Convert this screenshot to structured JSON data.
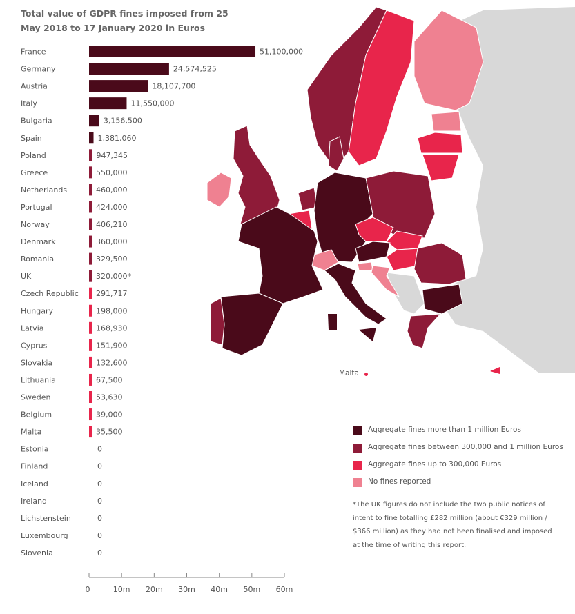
{
  "title": "Total value of GDPR fines imposed from 25 May 2018 to 17 January 2020 in Euros",
  "colors": {
    "over_1m": "#4a0a1a",
    "between_300k_1m": "#8e1b38",
    "up_to_300k": "#e8254b",
    "no_fines": "#ef8191",
    "other": "#d8d8d8",
    "axis": "#888888"
  },
  "chart_data": {
    "type": "bar",
    "orientation": "horizontal",
    "categories": [
      "France",
      "Germany",
      "Austria",
      "Italy",
      "Bulgaria",
      "Spain",
      "Poland",
      "Greece",
      "Netherlands",
      "Portugal",
      "Norway",
      "Denmark",
      "Romania",
      "UK",
      "Czech Republic",
      "Hungary",
      "Latvia",
      "Cyprus",
      "Slovakia",
      "Lithuania",
      "Sweden",
      "Belgium",
      "Malta",
      "Estonia",
      "Finland",
      "Iceland",
      "Ireland",
      "Lichstenstein",
      "Luxembourg",
      "Slovenia"
    ],
    "values": [
      51100000,
      24574525,
      18107700,
      11550000,
      3156500,
      1381060,
      947345,
      550000,
      460000,
      424000,
      406210,
      360000,
      329500,
      320000,
      291717,
      198000,
      168930,
      151900,
      132600,
      67500,
      53630,
      39000,
      35500,
      0,
      0,
      0,
      0,
      0,
      0,
      0
    ],
    "value_labels": [
      "51,100,000",
      "24,574,525",
      "18,107,700",
      "11,550,000",
      "3,156,500",
      "1,381,060",
      "947,345",
      "550,000",
      "460,000",
      "424,000",
      "406,210",
      "360,000",
      "329,500",
      "320,000*",
      "291,717",
      "198,000",
      "168,930",
      "151,900",
      "132,600",
      "67,500",
      "53,630",
      "39,000",
      "35,500",
      "0",
      "0",
      "0",
      "0",
      "0",
      "0",
      "0"
    ],
    "bar_classes": [
      "over_1m",
      "over_1m",
      "over_1m",
      "over_1m",
      "over_1m",
      "over_1m",
      "between_300k_1m",
      "between_300k_1m",
      "between_300k_1m",
      "between_300k_1m",
      "between_300k_1m",
      "between_300k_1m",
      "between_300k_1m",
      "between_300k_1m",
      "up_to_300k",
      "up_to_300k",
      "up_to_300k",
      "up_to_300k",
      "up_to_300k",
      "up_to_300k",
      "up_to_300k",
      "up_to_300k",
      "up_to_300k",
      "no_fines",
      "no_fines",
      "no_fines",
      "no_fines",
      "no_fines",
      "no_fines",
      "no_fines"
    ],
    "xlim": [
      0,
      60000000
    ],
    "xticks": [
      0,
      10000000,
      20000000,
      30000000,
      40000000,
      50000000,
      60000000
    ],
    "xtick_labels": [
      "0",
      "10m",
      "20m",
      "30m",
      "40m",
      "50m",
      "60m"
    ],
    "grid": false
  },
  "legend": {
    "items": [
      {
        "label": "Aggregate fines more than 1 million Euros",
        "color": "#4a0a1a"
      },
      {
        "label": "Aggregate fines between 300,000 and 1 million Euros",
        "color": "#8e1b38"
      },
      {
        "label": "Aggregate fines up to 300,000 Euros",
        "color": "#e8254b"
      },
      {
        "label": "No fines reported",
        "color": "#ef8191"
      }
    ]
  },
  "map": {
    "malta_label": "Malta"
  },
  "footnote": "*The UK figures do not include the two public notices of intent to fine totalling £282 million (about €329 million / $366 million) as they had not been finalised and imposed at the time of writing this report."
}
